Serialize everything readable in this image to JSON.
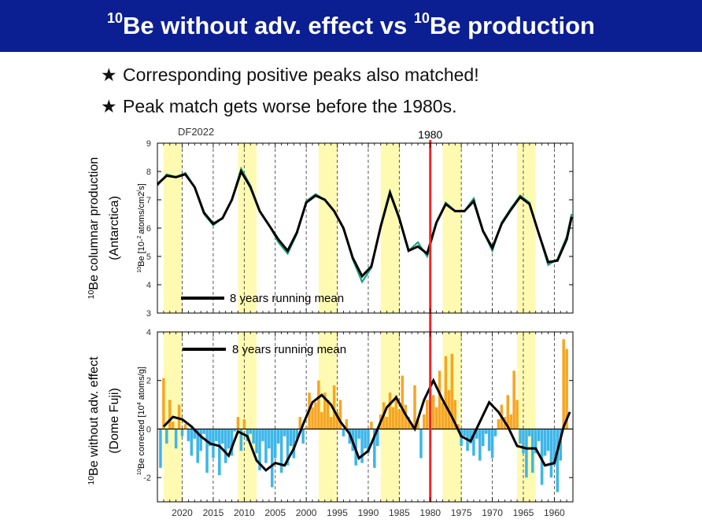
{
  "header": {
    "title_parts": {
      "sup1": "10",
      "mid": "Be without adv. effect vs ",
      "sup2": "10",
      "end": "Be production"
    },
    "background": "#0b1f93",
    "text_color": "#ffffff"
  },
  "bullets": [
    {
      "icon": "star-icon",
      "glyph": "★",
      "text": "Corresponding  positive peaks also matched!"
    },
    {
      "icon": "star-icon",
      "glyph": "★",
      "text": "Peak match gets worse before the 1980s."
    }
  ],
  "chart_data": [
    {
      "type": "line",
      "panel": "top",
      "dataset_label": "DF2022",
      "ylabel_line1": "10Be columnar production",
      "ylabel_line2": "(Antarctica)",
      "ylabel_units": "10Be [10-2 atoms/cm2/s]",
      "ylim": [
        3,
        9
      ],
      "yticks": [
        "3",
        "4",
        "5",
        "6",
        "7",
        "8",
        "9"
      ],
      "x_axis": "year (reversed)",
      "xlim": [
        2024,
        1957
      ],
      "colors": {
        "raw": "#1aa383",
        "mean": "#000000",
        "highlight": "#fff9a3",
        "marker": "#e8282b"
      },
      "legend": "8 years running mean",
      "legend_position": "lower-left",
      "highlight_bands": [
        [
          2023,
          2020
        ],
        [
          2011,
          2008
        ],
        [
          1998,
          1995
        ],
        [
          1988,
          1985
        ],
        [
          1978,
          1975
        ],
        [
          1966,
          1963
        ]
      ],
      "marker_year": 1980,
      "marker_label": "1980",
      "raw": {
        "x": [
          2024.0,
          2022.5,
          2021.0,
          2019.5,
          2018.0,
          2016.5,
          2015.0,
          2013.5,
          2012.0,
          2010.5,
          2009.0,
          2007.5,
          2006.0,
          2004.5,
          2003.0,
          2001.5,
          2000.0,
          1998.5,
          1997.0,
          1995.5,
          1994.0,
          1992.5,
          1991.0,
          1989.5,
          1988.0,
          1986.5,
          1985.0,
          1983.5,
          1982.0,
          1980.5,
          1979.0,
          1977.5,
          1976.0,
          1974.5,
          1973.0,
          1971.5,
          1970.0,
          1968.5,
          1967.0,
          1965.5,
          1964.0,
          1962.5,
          1961.0,
          1959.5,
          1958.0,
          1957.2
        ],
        "y": [
          7.5,
          7.9,
          7.8,
          7.95,
          7.45,
          6.5,
          6.1,
          6.35,
          7.0,
          8.1,
          7.5,
          6.6,
          6.1,
          5.5,
          5.1,
          5.8,
          6.95,
          7.2,
          7.0,
          6.6,
          6.0,
          4.9,
          4.1,
          4.6,
          6.1,
          7.3,
          6.4,
          5.2,
          5.5,
          5.0,
          6.2,
          6.9,
          6.6,
          6.6,
          7.05,
          5.9,
          5.2,
          6.2,
          6.7,
          7.15,
          6.9,
          5.8,
          4.7,
          4.9,
          5.7,
          6.5
        ]
      },
      "running_mean": {
        "x": [
          2024.0,
          2022.5,
          2021.0,
          2019.5,
          2018.0,
          2016.5,
          2015.0,
          2013.5,
          2012.0,
          2010.5,
          2009.0,
          2007.5,
          2006.0,
          2004.5,
          2003.0,
          2001.5,
          2000.0,
          1998.5,
          1997.0,
          1995.5,
          1994.0,
          1992.5,
          1991.0,
          1989.5,
          1988.0,
          1986.5,
          1985.0,
          1983.5,
          1982.0,
          1980.5,
          1979.0,
          1977.5,
          1976.0,
          1974.5,
          1973.0,
          1971.5,
          1970.0,
          1968.5,
          1967.0,
          1965.5,
          1964.0,
          1962.5,
          1961.0,
          1959.5,
          1958.0,
          1957.2
        ],
        "y": [
          7.55,
          7.85,
          7.8,
          7.9,
          7.45,
          6.55,
          6.15,
          6.35,
          7.0,
          8.0,
          7.45,
          6.6,
          6.1,
          5.6,
          5.2,
          5.85,
          6.9,
          7.15,
          7.0,
          6.6,
          6.0,
          4.95,
          4.3,
          4.65,
          6.05,
          7.25,
          6.35,
          5.2,
          5.35,
          5.1,
          6.2,
          6.85,
          6.6,
          6.6,
          6.95,
          5.9,
          5.3,
          6.15,
          6.65,
          7.1,
          6.85,
          5.8,
          4.8,
          4.85,
          5.6,
          6.4
        ]
      }
    },
    {
      "type": "bar",
      "panel": "bottom",
      "ylabel_line1": "10Be without adv. effect",
      "ylabel_line2": "(Dome Fuji)",
      "ylabel_units": "10Be corrected [104 atoms/g]",
      "ylim": [
        -3,
        4
      ],
      "yticks": [
        "-2",
        "0",
        "2",
        "4"
      ],
      "x_axis": "year (reversed)",
      "xlim": [
        2024,
        1957
      ],
      "xticks": [
        "2020",
        "2015",
        "2010",
        "2005",
        "2000",
        "1995",
        "1990",
        "1985",
        "1980",
        "1975",
        "1970",
        "1965",
        "1960"
      ],
      "tick_years": [
        2020,
        2015,
        2010,
        2005,
        2000,
        1995,
        1990,
        1985,
        1980,
        1975,
        1970,
        1965,
        1960
      ],
      "colors": {
        "positive": "#f6a623",
        "negative": "#3db6ea",
        "mean": "#000000",
        "highlight": "#fff9a3",
        "marker": "#e8282b"
      },
      "legend": "8 years running mean",
      "legend_position": "top-left",
      "highlight_bands": [
        [
          2023,
          2020
        ],
        [
          2011,
          2008
        ],
        [
          1998,
          1995
        ],
        [
          1988,
          1985
        ],
        [
          1978,
          1975
        ],
        [
          1966,
          1963
        ]
      ],
      "marker_year": 1980,
      "bars": {
        "x": [
          2023.5,
          2023,
          2022.5,
          2022,
          2021.5,
          2021,
          2020.5,
          2020,
          2019.5,
          2019,
          2018.5,
          2018,
          2017.5,
          2017,
          2016.5,
          2016,
          2015.5,
          2015,
          2014.5,
          2014,
          2013.5,
          2013,
          2012.5,
          2012,
          2011.5,
          2011,
          2010.5,
          2010,
          2009.5,
          2009,
          2008.5,
          2008,
          2007.5,
          2007,
          2006.5,
          2006,
          2005.5,
          2005,
          2004.5,
          2004,
          2003.5,
          2003,
          2002.5,
          2002,
          2001.5,
          2001,
          2000.5,
          2000,
          1999.5,
          1999,
          1998.5,
          1998,
          1997.5,
          1997,
          1996.5,
          1996,
          1995.5,
          1995,
          1994.5,
          1994,
          1993.5,
          1993,
          1992.5,
          1992,
          1991.5,
          1991,
          1990.5,
          1990,
          1989.5,
          1989,
          1988.5,
          1988,
          1987.5,
          1987,
          1986.5,
          1986,
          1985.5,
          1985,
          1984.5,
          1984,
          1983.5,
          1983,
          1982.5,
          1982,
          1981.5,
          1981,
          1980.5,
          1980,
          1979.5,
          1979,
          1978.5,
          1978,
          1977.5,
          1977,
          1976.5,
          1976,
          1975.5,
          1975,
          1974.5,
          1974,
          1973.5,
          1973,
          1972.5,
          1972,
          1971.5,
          1971,
          1970.5,
          1970,
          1969.5,
          1969,
          1968.5,
          1968,
          1967.5,
          1967,
          1966.5,
          1966,
          1965.5,
          1965,
          1964.5,
          1964,
          1963.5,
          1963,
          1962.5,
          1962,
          1961.5,
          1961,
          1960.5,
          1960,
          1959.5,
          1959,
          1958.5,
          1958
        ],
        "values": [
          -1.6,
          2.1,
          -0.6,
          1.2,
          0.3,
          -0.8,
          1.0,
          -0.3,
          0.2,
          -0.5,
          -1.1,
          -0.4,
          -1.4,
          -0.9,
          -0.2,
          -1.8,
          -0.7,
          -1.2,
          -0.5,
          -1.9,
          -0.6,
          -1.4,
          -0.8,
          -1.1,
          -0.1,
          0.5,
          -0.9,
          0.4,
          -0.5,
          -0.2,
          -0.6,
          -1.0,
          -1.7,
          -0.5,
          -1.4,
          -0.8,
          -2.4,
          -1.2,
          -0.6,
          -1.8,
          -0.3,
          -1.5,
          -0.7,
          -1.2,
          -0.4,
          0.5,
          -0.6,
          0.1,
          1.5,
          0.9,
          1.1,
          2.0,
          0.7,
          1.5,
          1.2,
          0.5,
          1.8,
          0.7,
          1.2,
          -0.3,
          0.4,
          -0.6,
          -0.9,
          -1.5,
          -0.4,
          -1.4,
          -0.8,
          -1.0,
          0.3,
          -1.6,
          -0.7,
          0.6,
          1.1,
          0.5,
          1.5,
          0.9,
          1.4,
          0.8,
          2.2,
          1.0,
          0.5,
          0.2,
          1.8,
          0.4,
          -1.2,
          0.6,
          1.2,
          2.0,
          1.4,
          0.9,
          2.4,
          1.1,
          3.0,
          1.6,
          3.1,
          1.2,
          0.2,
          -0.7,
          -0.3,
          -0.9,
          -0.6,
          -1.1,
          -0.4,
          -1.3,
          -0.7,
          -0.2,
          -0.9,
          -1.2,
          -0.3,
          0.4,
          1.0,
          0.5,
          1.4,
          0.6,
          2.4,
          1.2,
          -0.6,
          -1.0,
          -2.0,
          -0.3,
          -1.8,
          -1.0,
          -0.5,
          -2.3,
          -1.1,
          -0.9,
          -2.0,
          -1.5,
          -2.6,
          -1.3,
          3.7,
          3.3
        ]
      },
      "running_mean": {
        "x": [
          2023.0,
          2021.5,
          2020.0,
          2018.5,
          2017.0,
          2015.5,
          2014.0,
          2012.5,
          2011.0,
          2009.5,
          2008.0,
          2006.5,
          2005.0,
          2003.5,
          2002.0,
          2000.5,
          1999.0,
          1997.5,
          1996.0,
          1994.5,
          1993.0,
          1991.5,
          1990.0,
          1988.5,
          1987.0,
          1985.5,
          1984.0,
          1982.5,
          1981.0,
          1979.5,
          1978.0,
          1976.5,
          1975.0,
          1973.5,
          1972.0,
          1970.5,
          1969.0,
          1967.5,
          1966.0,
          1964.5,
          1963.0,
          1961.5,
          1960.0,
          1958.5,
          1957.5
        ],
        "y": [
          0.1,
          0.5,
          0.4,
          0.1,
          -0.3,
          -0.6,
          -0.7,
          -1.1,
          -0.1,
          -0.3,
          -1.3,
          -1.7,
          -1.4,
          -1.5,
          -0.8,
          0.2,
          1.1,
          1.4,
          1.0,
          0.3,
          -0.2,
          -1.2,
          -0.9,
          0.0,
          0.9,
          1.3,
          0.6,
          0.0,
          1.2,
          2.0,
          1.2,
          0.5,
          -0.3,
          -0.5,
          0.3,
          1.1,
          0.7,
          0.1,
          -0.7,
          -0.8,
          -0.8,
          -1.5,
          -1.4,
          0.1,
          0.7
        ]
      }
    }
  ]
}
